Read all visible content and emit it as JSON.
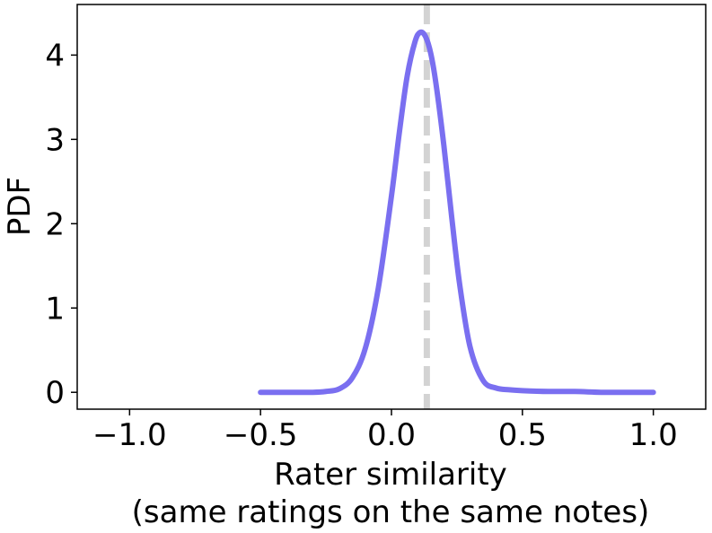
{
  "chart_data": {
    "type": "line",
    "xlabel_line1": "Rater similarity",
    "xlabel_line2": "(same ratings on the same notes)",
    "ylabel": "PDF",
    "xlim": [
      -1.2,
      1.2
    ],
    "ylim": [
      -0.2,
      4.6
    ],
    "x_ticks": [
      -1.0,
      -0.5,
      0.0,
      0.5,
      1.0
    ],
    "x_tick_labels": [
      "−1.0",
      "−0.5",
      "0.0",
      "0.5",
      "1.0"
    ],
    "y_ticks": [
      0,
      1,
      2,
      3,
      4
    ],
    "y_tick_labels": [
      "0",
      "1",
      "2",
      "3",
      "4"
    ],
    "grid": false,
    "series": [
      {
        "color": "#7a6ff0",
        "x": [
          -0.5,
          -0.4,
          -0.3,
          -0.25,
          -0.2,
          -0.15,
          -0.1,
          -0.05,
          0.0,
          0.03,
          0.06,
          0.09,
          0.11,
          0.13,
          0.15,
          0.17,
          0.2,
          0.23,
          0.26,
          0.3,
          0.35,
          0.4,
          0.45,
          0.5,
          0.6,
          0.7,
          0.8,
          0.9,
          1.0
        ],
        "y": [
          0.0,
          0.0,
          0.0,
          0.01,
          0.04,
          0.17,
          0.52,
          1.24,
          2.33,
          3.08,
          3.75,
          4.16,
          4.27,
          4.22,
          4.02,
          3.66,
          2.93,
          2.08,
          1.29,
          0.54,
          0.14,
          0.05,
          0.03,
          0.02,
          0.01,
          0.01,
          0.0,
          0.0,
          0.0
        ]
      }
    ],
    "vline": {
      "x": 0.135,
      "color": "#d3d3d3",
      "style": "dashed"
    }
  }
}
